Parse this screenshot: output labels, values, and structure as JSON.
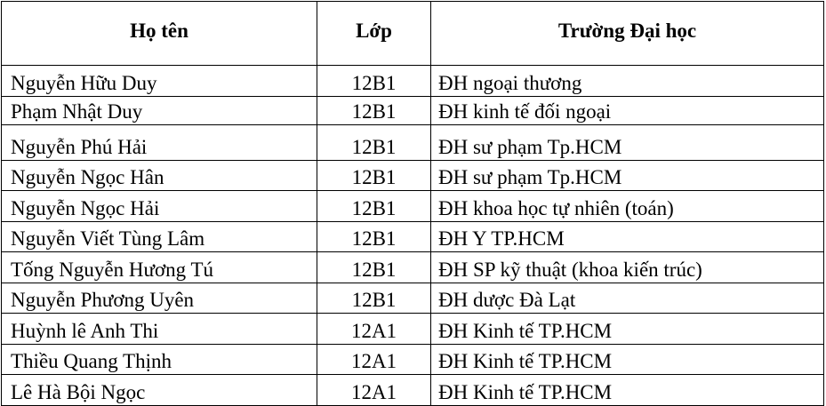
{
  "table": {
    "headers": {
      "name": "Họ tên",
      "class": "Lớp",
      "university": "Trường Đại học"
    },
    "rows": [
      {
        "name": "Nguyễn Hữu  Duy",
        "class": "12B1",
        "university": "ĐH ngoại thương"
      },
      {
        "name": "Phạm Nhật Duy",
        "class": "12B1",
        "university": "ĐH kinh tế đối ngoại"
      },
      {
        "name": "Nguyễn Phú Hải",
        "class": "12B1",
        "university": "ĐH sư phạm Tp.HCM"
      },
      {
        "name": "Nguyễn Ngọc Hân",
        "class": "12B1",
        "university": "ĐH sư phạm Tp.HCM"
      },
      {
        "name": "Nguyễn Ngọc Hải",
        "class": "12B1",
        "university": "ĐH khoa học tự nhiên (toán)"
      },
      {
        "name": "Nguyễn Viết Tùng Lâm",
        "class": "12B1",
        "university": "ĐH Y TP.HCM"
      },
      {
        "name": "Tống Nguyễn Hương Tú",
        "class": "12B1",
        "university": "ĐH SP kỹ thuật (khoa kiến trúc)"
      },
      {
        "name": "Nguyễn Phương Uyên",
        "class": "12B1",
        "university": "ĐH dược Đà Lạt"
      },
      {
        "name": "Huỳnh lê Anh Thi",
        "class": "12A1",
        "university": "ĐH Kinh tế TP.HCM"
      },
      {
        "name": "Thiều Quang Thịnh",
        "class": "12A1",
        "university": "ĐH Kinh tế TP.HCM"
      },
      {
        "name": "Lê Hà Bội Ngọc",
        "class": "12A1",
        "university": "ĐH Kinh tế TP.HCM"
      }
    ]
  }
}
